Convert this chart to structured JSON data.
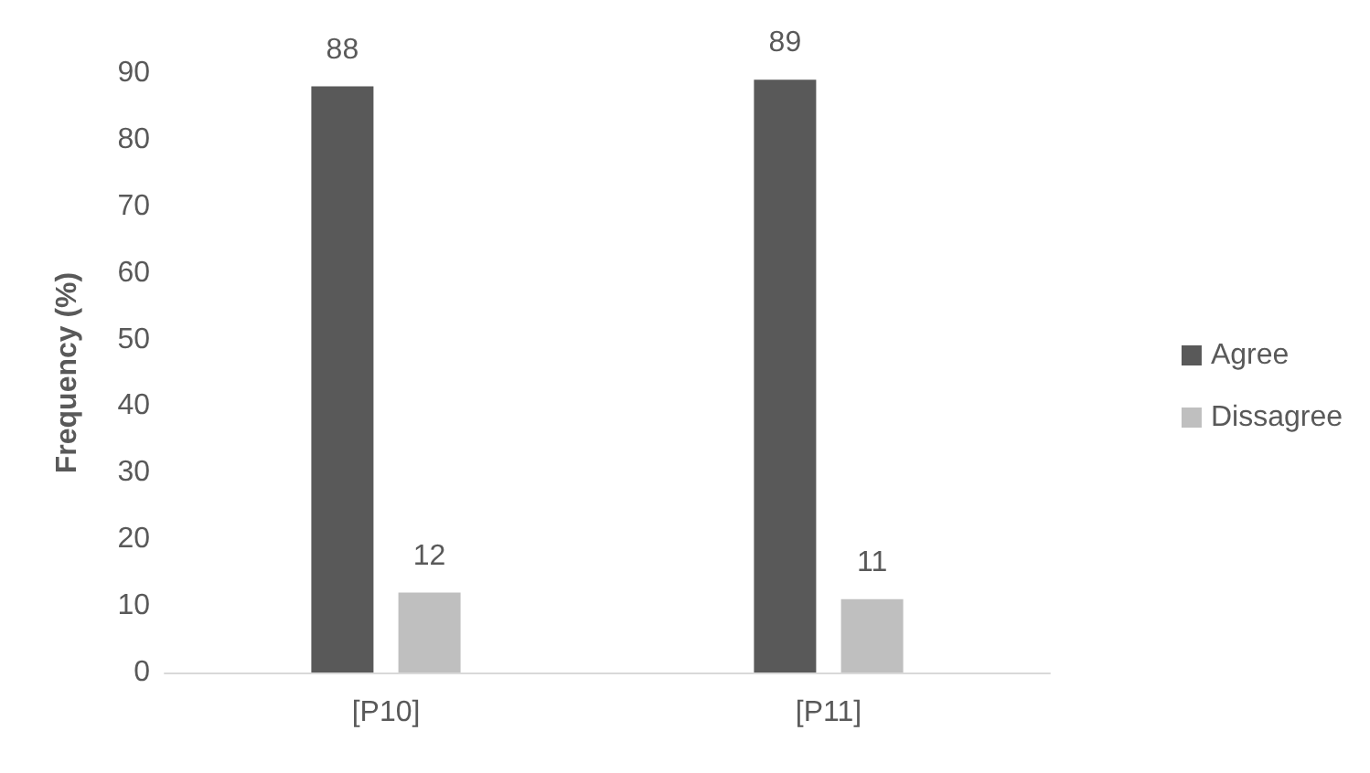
{
  "chart_data": {
    "type": "bar",
    "ylabel": "Frequency (%)",
    "categories": [
      "[P10]",
      "[P11]"
    ],
    "series": [
      {
        "name": "Agree",
        "color": "#595959",
        "values": [
          88,
          89
        ]
      },
      {
        "name": "Dissagree",
        "color": "#bfbfbf",
        "values": [
          12,
          11
        ]
      }
    ],
    "ylim": [
      0,
      90
    ],
    "yticks": [
      0,
      10,
      20,
      30,
      40,
      50,
      60,
      70,
      80,
      90
    ],
    "grid": false,
    "legend": "right",
    "data_labels": true
  }
}
